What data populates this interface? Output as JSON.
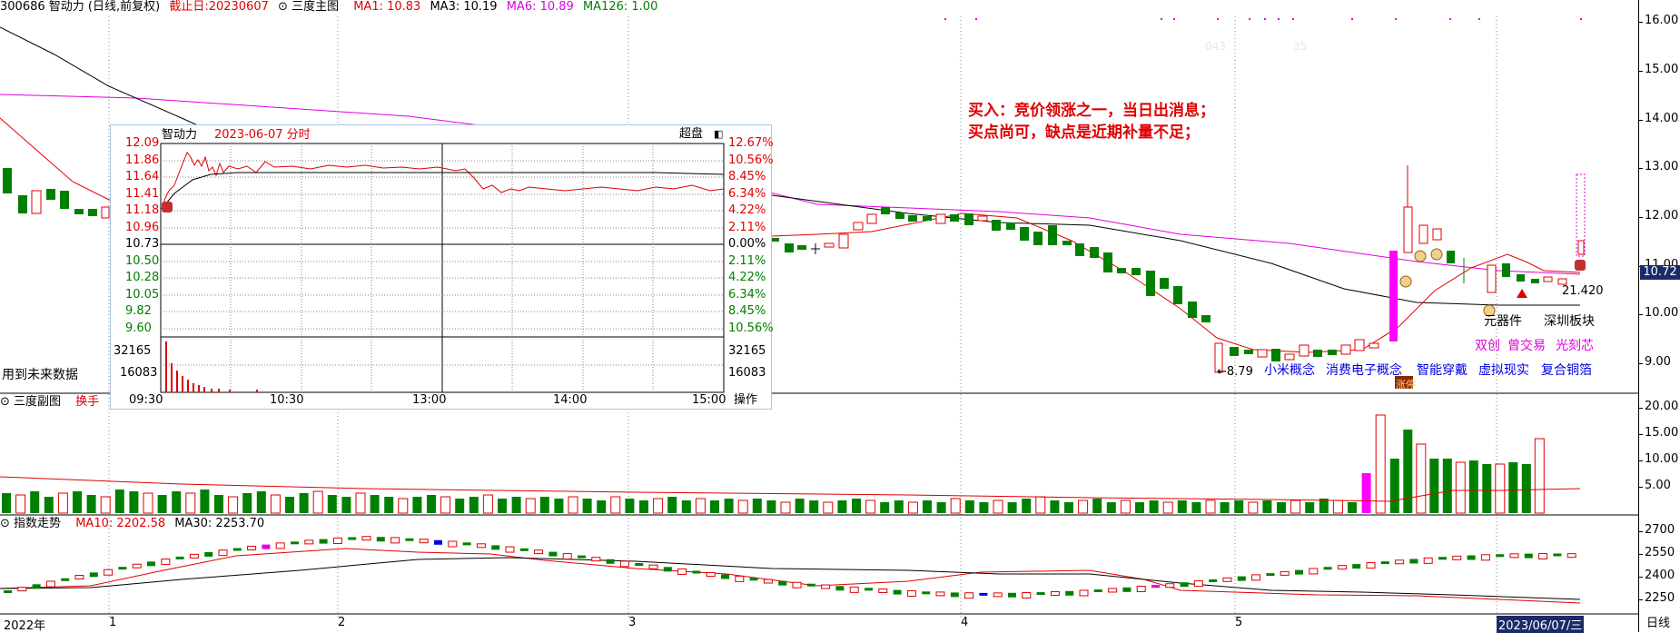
{
  "main_header": {
    "code_name": "300686 智动力 (日线,前复权)",
    "cutoff": "截止日:20230607",
    "panel": "三度主图",
    "ma1": "MA1: 10.83",
    "ma3": "MA3: 10.19",
    "ma6": "MA6: 10.89",
    "ma126": "MA126: 1.00",
    "faint1": "043",
    "faint2": "35"
  },
  "main_axis": [
    "16.00",
    "15.00",
    "14.00",
    "13.00",
    "12.00",
    "11.00",
    "10.00",
    "9.00"
  ],
  "price_badge": "10.72",
  "annotation": [
    "买入：竞价领涨之一，当日出消息；",
    "买点尚可，缺点是近期补量不足；"
  ],
  "main_labels": {
    "future": "用到未来数据",
    "low_price": "←8.79",
    "last_price": "21.420",
    "board1": "元器件",
    "board2": "深圳板块",
    "concepts_pink": [
      "双创",
      "曾交易",
      "光刻芯"
    ],
    "concepts_blue": [
      "小米概念",
      "消费电子概念",
      "智能穿戴",
      "虚拟现实",
      "复合铜箔"
    ],
    "limit_up": "涨停"
  },
  "intraday": {
    "name": "智动力",
    "title": "2023-06-07 分时",
    "mode": "超盘",
    "prices_left": [
      "12.09",
      "11.86",
      "11.64",
      "11.41",
      "11.18",
      "10.96",
      "10.73",
      "10.50",
      "10.28",
      "10.05",
      "9.82",
      "9.60"
    ],
    "pct_right": [
      "12.67%",
      "10.56%",
      "8.45%",
      "6.34%",
      "4.22%",
      "2.11%",
      "0.00%",
      "2.11%",
      "4.22%",
      "6.34%",
      "8.45%",
      "10.56%"
    ],
    "vol_left": [
      "32165",
      "16083"
    ],
    "vol_right": [
      "32165",
      "16083"
    ],
    "times": [
      "09:30",
      "10:30",
      "13:00",
      "14:00",
      "15:00"
    ],
    "op": "操作"
  },
  "vol_header": {
    "panel": "三度副图",
    "label": "换手"
  },
  "vol_axis": [
    "20.00",
    "15.00",
    "10.00",
    "5.00"
  ],
  "idx_header": {
    "panel": "指数走势",
    "ma10": "MA10: 2202.58",
    "ma30": "MA30: 2253.70"
  },
  "idx_axis": [
    "2700",
    "2550",
    "2400",
    "2250"
  ],
  "date_axis": {
    "year": "2022年",
    "m1": "1",
    "m2": "2",
    "m3": "3",
    "m4": "4",
    "m5": "5",
    "end": "2023/06/07/三",
    "period": "日线"
  },
  "colors": {
    "up": "#e00000",
    "down": "#008000",
    "ma6": "#e000e0",
    "limit": "#ff00ff",
    "annot": "#e00000",
    "concept_blue": "#0000e0"
  }
}
